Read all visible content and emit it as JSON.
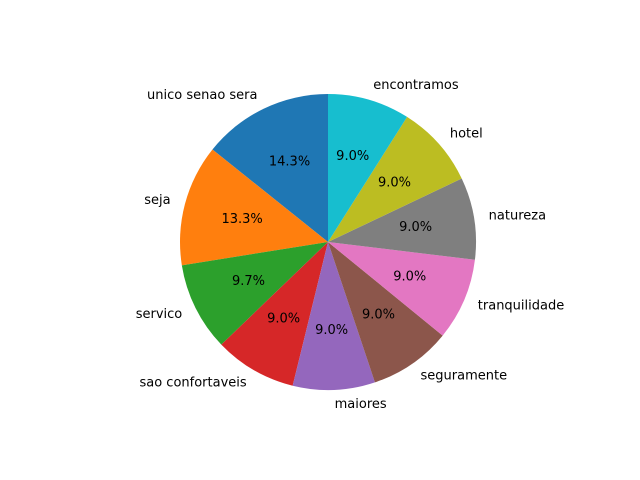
{
  "chart_data": {
    "type": "pie",
    "start_angle_deg": 90,
    "direction": "counterclockwise",
    "slices": [
      {
        "label": "unico senao sera",
        "value": 14.3,
        "pct_text": "14.3%",
        "color": "#1f77b4"
      },
      {
        "label": "seja",
        "value": 13.3,
        "pct_text": "13.3%",
        "color": "#ff7f0e"
      },
      {
        "label": "servico",
        "value": 9.7,
        "pct_text": "9.7%",
        "color": "#2ca02c"
      },
      {
        "label": "sao confortaveis",
        "value": 9.0,
        "pct_text": "9.0%",
        "color": "#d62728"
      },
      {
        "label": "maiores",
        "value": 9.0,
        "pct_text": "9.0%",
        "color": "#9467bd"
      },
      {
        "label": "seguramente",
        "value": 9.0,
        "pct_text": "9.0%",
        "color": "#8c564b"
      },
      {
        "label": "tranquilidade",
        "value": 9.0,
        "pct_text": "9.0%",
        "color": "#e377c2"
      },
      {
        "label": "natureza",
        "value": 9.0,
        "pct_text": "9.0%",
        "color": "#7f7f7f"
      },
      {
        "label": "hotel",
        "value": 9.0,
        "pct_text": "9.0%",
        "color": "#bcbd22"
      },
      {
        "label": "encontramos",
        "value": 9.0,
        "pct_text": "9.0%",
        "color": "#17becf"
      }
    ]
  }
}
